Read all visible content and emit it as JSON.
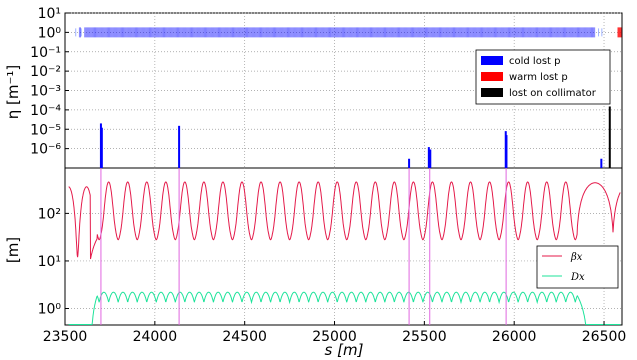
{
  "chart_data": [
    {
      "type": "bar",
      "panel": "loss-map",
      "ylabel": "η [m⁻¹]",
      "yscale": "log",
      "ylim": [
        1e-07,
        10
      ],
      "yticks": [
        "10⁻⁶",
        "10⁻⁵",
        "10⁻⁴",
        "10⁻³",
        "10⁻²",
        "10⁻¹",
        "10⁰",
        "10¹"
      ],
      "xlim": [
        23500,
        26600
      ],
      "grid": true,
      "legend_position": "right",
      "legend": [
        {
          "label": "cold lost p",
          "color": "#0000ff"
        },
        {
          "label": "warm lost p",
          "color": "#ff0000"
        },
        {
          "label": "lost on collimator",
          "color": "#000000"
        }
      ],
      "series": [
        {
          "name": "cold lost p",
          "color": "#0000ff",
          "points": [
            [
              23700,
              2e-05
            ],
            [
              23705,
              1.2e-05
            ],
            [
              24135,
              1.5e-05
            ],
            [
              25415,
              3e-07
            ],
            [
              25525,
              1.2e-06
            ],
            [
              25533,
              9e-07
            ],
            [
              25953,
              8e-06
            ],
            [
              25957,
              5e-06
            ],
            [
              26485,
              3e-07
            ]
          ]
        },
        {
          "name": "lost on collimator",
          "color": "#000000",
          "points": [
            [
              26532,
              0.00015
            ]
          ]
        }
      ],
      "element_marker_color": "#0000ff",
      "element_marker_level": 1.0
    },
    {
      "type": "line",
      "panel": "optics",
      "ylabel": "[m]",
      "xlabel": "s [m]",
      "yscale": "log",
      "ylim": [
        0.45,
        900
      ],
      "yticks": [
        "10⁰",
        "10¹",
        "10²"
      ],
      "xlim": [
        23500,
        26600
      ],
      "xticks": [
        "23500",
        "24000",
        "24500",
        "25000",
        "25500",
        "26000",
        "26500"
      ],
      "xtick_values": [
        23500,
        24000,
        24500,
        25000,
        25500,
        26000,
        26500
      ],
      "grid": true,
      "legend_position": "bottom-right",
      "series": [
        {
          "name": "βx",
          "color": "#e41a4a"
        },
        {
          "name": "Dx",
          "color": "#1de39a"
        }
      ],
      "vertical_markers_color": "#e066e0",
      "vertical_markers_at": [
        23700,
        24135,
        25415,
        25530,
        25955
      ]
    }
  ]
}
